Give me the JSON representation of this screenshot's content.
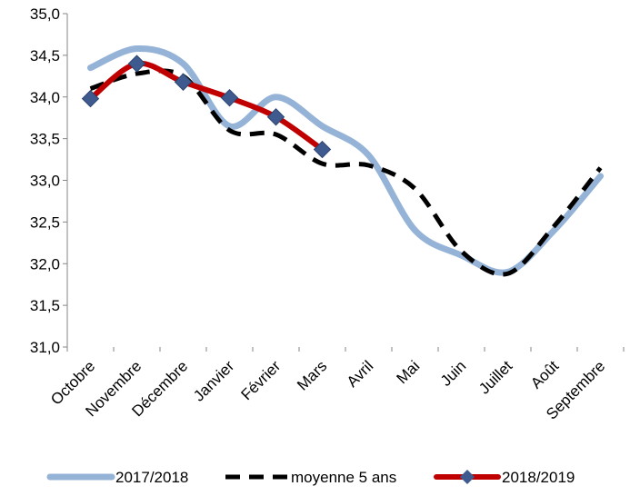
{
  "chart_data": {
    "type": "line",
    "categories": [
      "Octobre",
      "Novembre",
      "Décembre",
      "Janvier",
      "Février",
      "Mars",
      "Avril",
      "Mai",
      "Juin",
      "Juillet",
      "Août",
      "Septembre"
    ],
    "series": [
      {
        "name": "2017/2018",
        "color": "#95b3d7",
        "values": [
          34.35,
          34.58,
          34.4,
          33.65,
          34.0,
          33.65,
          33.3,
          32.4,
          32.1,
          31.9,
          32.4,
          33.05
        ]
      },
      {
        "name": "moyenne 5 ans",
        "color": "#000000",
        "values": [
          34.1,
          34.28,
          34.25,
          33.6,
          33.55,
          33.2,
          33.18,
          32.9,
          32.15,
          31.88,
          32.45,
          33.15
        ]
      },
      {
        "name": "2018/2019",
        "color": "#c00000",
        "values": [
          33.98,
          34.4,
          34.18,
          33.99,
          33.76,
          33.37,
          null,
          null,
          null,
          null,
          null,
          null
        ]
      }
    ],
    "ylim": [
      31,
      35
    ],
    "yticks": [
      {
        "value": 31,
        "label": "31,0"
      },
      {
        "value": 31.5,
        "label": "31,5"
      },
      {
        "value": 32,
        "label": "32,0"
      },
      {
        "value": 32.5,
        "label": "32,5"
      },
      {
        "value": 33,
        "label": "33,0"
      },
      {
        "value": 33.5,
        "label": "33,5"
      },
      {
        "value": 34,
        "label": "34,0"
      },
      {
        "value": 34.5,
        "label": "34,5"
      },
      {
        "value": 35,
        "label": "35,0"
      }
    ],
    "legend": "bottom"
  }
}
